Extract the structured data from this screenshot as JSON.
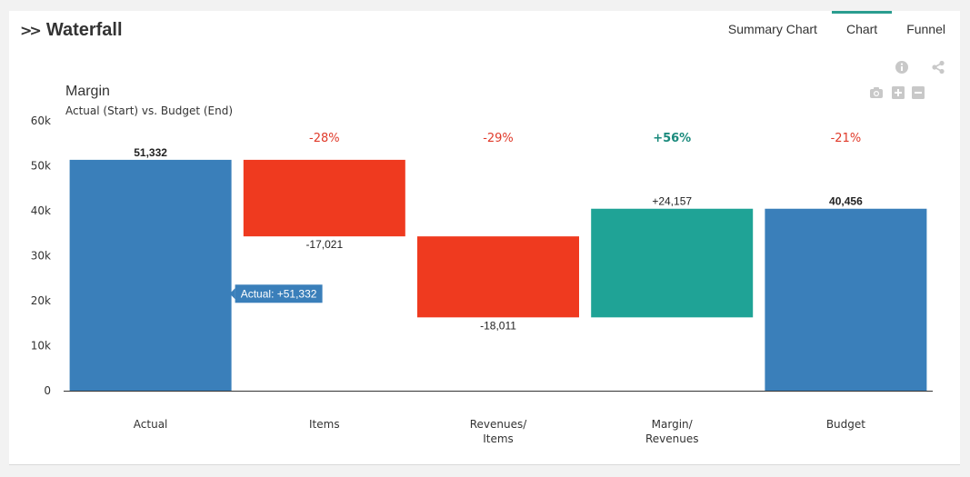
{
  "header": {
    "title": "Waterfall",
    "chevron_icon": "double-chevron-right-icon"
  },
  "tabs": [
    {
      "label": "Summary Chart",
      "active": false
    },
    {
      "label": "Chart",
      "active": true
    },
    {
      "label": "Funnel",
      "active": false
    }
  ],
  "tools": {
    "info": "info-icon",
    "share": "share-icon",
    "camera": "camera-icon",
    "zoom_in": "plus-icon",
    "zoom_out": "minus-icon"
  },
  "colors": {
    "total": "#3a7fba",
    "decrease": "#ef3a1f",
    "increase": "#1fa396",
    "tab_accent": "#2a9d8f",
    "pct_neg": "#e03a2a",
    "pct_pos": "#1a8a7c"
  },
  "chart_data": {
    "type": "bar",
    "subtype": "waterfall",
    "title": "Margin",
    "subtitle": "Actual (Start) vs. Budget (End)",
    "ylim": [
      0,
      60000
    ],
    "y_ticks": [
      {
        "value": 0,
        "label": "0"
      },
      {
        "value": 10000,
        "label": "10k"
      },
      {
        "value": 20000,
        "label": "20k"
      },
      {
        "value": 30000,
        "label": "30k"
      },
      {
        "value": 40000,
        "label": "40k"
      },
      {
        "value": 50000,
        "label": "50k"
      },
      {
        "value": 60000,
        "label": "60k"
      }
    ],
    "bars": [
      {
        "label": [
          "Actual"
        ],
        "kind": "total",
        "start": 0,
        "end": 51332,
        "value_label": "51,332",
        "pct": ""
      },
      {
        "label": [
          "Items"
        ],
        "kind": "decrease",
        "start": 51332,
        "end": 34311,
        "value_label": "-17,021",
        "pct": "-28%"
      },
      {
        "label": [
          "Revenues/",
          "Items"
        ],
        "kind": "decrease",
        "start": 34311,
        "end": 16300,
        "value_label": "-18,011",
        "pct": "-29%"
      },
      {
        "label": [
          "Margin/",
          "Revenues"
        ],
        "kind": "increase",
        "start": 16300,
        "end": 40456,
        "value_label": "+24,157",
        "pct": "+56%"
      },
      {
        "label": [
          "Budget"
        ],
        "kind": "total",
        "start": 0,
        "end": 40456,
        "value_label": "40,456",
        "pct": "-21%"
      }
    ],
    "tooltip": "Actual: +51,332",
    "grid": false,
    "legend": "none"
  }
}
